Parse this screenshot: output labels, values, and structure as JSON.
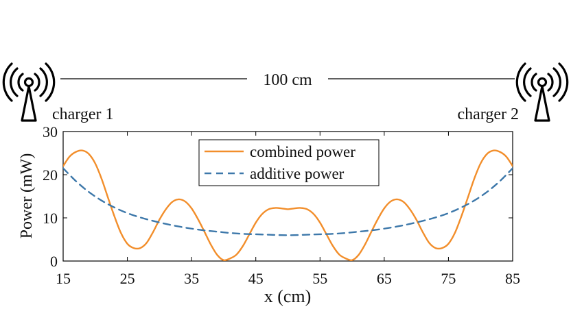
{
  "header": {
    "distance_label": "100 cm",
    "left_label": "charger 1",
    "right_label": "charger 2",
    "left_icon": "antenna-icon",
    "right_icon": "antenna-icon"
  },
  "chart_data": {
    "type": "line",
    "xlabel": "x (cm)",
    "ylabel": "Power (mW)",
    "xlim": [
      15,
      85
    ],
    "ylim": [
      0,
      30
    ],
    "xticks": [
      15,
      25,
      35,
      45,
      55,
      65,
      75,
      85
    ],
    "yticks": [
      0,
      10,
      20,
      30
    ],
    "grid": false,
    "legend_position": "top-center",
    "series": [
      {
        "name": "combined power",
        "color": "#F28E2B",
        "style": "solid",
        "x": [
          15,
          16,
          17,
          18,
          19,
          20,
          21,
          22,
          23,
          24,
          25,
          26,
          27,
          28,
          29,
          30,
          31,
          32,
          33,
          34,
          35,
          36,
          37,
          38,
          39,
          40,
          41,
          42,
          43,
          44,
          45,
          46,
          47,
          48,
          49,
          50,
          51,
          52,
          53,
          54,
          55,
          56,
          57,
          58,
          59,
          60,
          61,
          62,
          63,
          64,
          65,
          66,
          67,
          68,
          69,
          70,
          71,
          72,
          73,
          74,
          75,
          76,
          77,
          78,
          79,
          80,
          81,
          82,
          83,
          84,
          85
        ],
        "values": [
          22.0,
          24.2,
          25.3,
          25.6,
          24.8,
          22.6,
          19.0,
          14.6,
          10.3,
          6.5,
          4.0,
          3.0,
          3.0,
          4.2,
          6.7,
          9.6,
          12.0,
          13.7,
          14.3,
          13.8,
          12.2,
          9.7,
          6.8,
          3.8,
          1.4,
          0.2,
          0.6,
          1.5,
          3.5,
          6.2,
          8.9,
          10.9,
          12.0,
          12.3,
          12.2,
          12.0,
          12.2,
          12.3,
          12.0,
          10.9,
          8.9,
          6.2,
          3.5,
          1.5,
          0.6,
          0.2,
          1.4,
          3.8,
          6.8,
          9.7,
          12.2,
          13.8,
          14.3,
          13.7,
          12.0,
          9.6,
          6.7,
          4.2,
          3.0,
          3.0,
          4.0,
          6.5,
          10.3,
          14.6,
          19.0,
          22.6,
          24.8,
          25.6,
          25.3,
          24.2,
          22.0
        ]
      },
      {
        "name": "additive power",
        "color": "#3D78AA",
        "style": "dashed",
        "x": [
          15,
          17,
          19,
          21,
          23,
          25,
          27,
          29,
          31,
          33,
          35,
          37,
          39,
          41,
          43,
          45,
          47,
          49,
          51,
          53,
          55,
          57,
          59,
          61,
          63,
          65,
          67,
          69,
          71,
          73,
          75,
          77,
          79,
          81,
          83,
          85
        ],
        "values": [
          21.5,
          18.5,
          16.0,
          14.0,
          12.4,
          11.1,
          10.1,
          9.3,
          8.6,
          8.0,
          7.5,
          7.1,
          6.8,
          6.5,
          6.3,
          6.2,
          6.1,
          6.0,
          6.0,
          6.1,
          6.2,
          6.3,
          6.5,
          6.8,
          7.1,
          7.5,
          8.0,
          8.6,
          9.3,
          10.1,
          11.1,
          12.4,
          14.0,
          16.0,
          18.5,
          21.5
        ]
      }
    ]
  }
}
